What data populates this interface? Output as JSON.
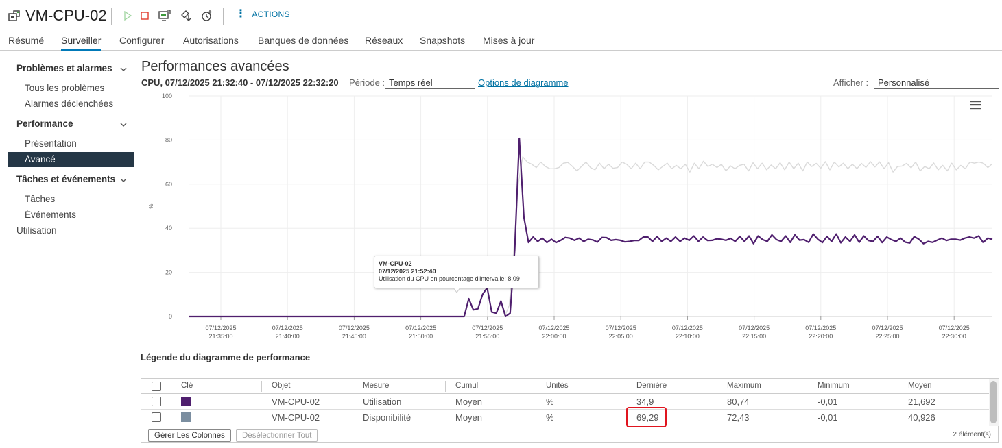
{
  "header": {
    "vm_name": "VM-CPU-02",
    "actions_label": "ACTIONS",
    "icons": [
      "vm-icon",
      "power-on-icon",
      "power-off-icon",
      "console-icon",
      "migrate-icon",
      "snapshot-icon"
    ]
  },
  "tabs": [
    {
      "label": "Résumé",
      "active": false
    },
    {
      "label": "Surveiller",
      "active": true
    },
    {
      "label": "Configurer",
      "active": false
    },
    {
      "label": "Autorisations",
      "active": false
    },
    {
      "label": "Banques de données",
      "active": false
    },
    {
      "label": "Réseaux",
      "active": false
    },
    {
      "label": "Snapshots",
      "active": false
    },
    {
      "label": "Mises à jour",
      "active": false
    }
  ],
  "sidebar": {
    "groups": [
      {
        "label": "Problèmes et alarmes",
        "items": [
          "Tous les problèmes",
          "Alarmes déclenchées"
        ]
      },
      {
        "label": "Performance",
        "items": [
          "Présentation",
          "Avancé"
        ]
      },
      {
        "label": "Tâches et événements",
        "items": [
          "Tâches",
          "Événements"
        ]
      }
    ],
    "active_item": "Avancé",
    "extra": "Utilisation"
  },
  "main": {
    "title": "Performances avancées",
    "subtitle": "CPU, 07/12/2025 21:32:40 - 07/12/2025 22:32:20",
    "period_label": "Période :",
    "period_value": "Temps réel",
    "chart_options_link": "Options de diagramme",
    "show_label": "Afficher :",
    "show_value": "Personnalisé"
  },
  "tooltip": {
    "object": "VM-CPU-02",
    "time": "07/12/2025 21:52:40",
    "text": "Utilisation du CPU en pourcentage d'intervalle: 8,09"
  },
  "chart_data": {
    "type": "line",
    "ylabel": "%",
    "ylim": [
      0,
      100
    ],
    "yticks": [
      "0",
      "20",
      "40",
      "60",
      "80",
      "100"
    ],
    "grid": true,
    "xticks": [
      {
        "date": "07/12/2025",
        "time": "21:35:00"
      },
      {
        "date": "07/12/2025",
        "time": "21:40:00"
      },
      {
        "date": "07/12/2025",
        "time": "21:45:00"
      },
      {
        "date": "07/12/2025",
        "time": "21:50:00"
      },
      {
        "date": "07/12/2025",
        "time": "21:55:00"
      },
      {
        "date": "07/12/2025",
        "time": "22:00:00"
      },
      {
        "date": "07/12/2025",
        "time": "22:05:00"
      },
      {
        "date": "07/12/2025",
        "time": "22:10:00"
      },
      {
        "date": "07/12/2025",
        "time": "22:15:00"
      },
      {
        "date": "07/12/2025",
        "time": "22:20:00"
      },
      {
        "date": "07/12/2025",
        "time": "22:25:00"
      },
      {
        "date": "07/12/2025",
        "time": "22:30:00"
      }
    ],
    "series": [
      {
        "color": "#4f1f6e",
        "values": [
          0,
          0,
          0,
          0,
          0,
          0,
          0,
          0,
          0,
          0,
          0,
          0,
          0,
          0,
          0,
          0,
          0,
          0,
          0,
          0,
          0,
          0,
          0,
          0,
          0,
          0,
          0,
          0,
          0,
          0,
          0,
          0,
          0,
          0,
          0,
          0,
          0,
          0,
          0,
          0,
          0,
          0,
          0,
          0,
          0,
          0,
          0,
          0,
          0,
          0,
          0,
          0,
          0,
          0,
          0,
          0,
          0,
          0,
          0,
          0,
          0,
          8.09,
          3,
          3.5,
          10,
          13,
          2,
          1.5,
          7,
          0,
          1.5,
          30,
          80.74,
          45,
          33.5,
          36,
          34,
          35.5,
          33.5,
          35,
          33.5,
          34.5,
          35.8,
          35.5,
          34.5,
          35.5,
          34,
          35,
          34.7,
          33.7,
          35.8,
          35.7,
          34.5,
          34.8,
          34.5,
          33.8,
          34,
          34.4,
          34.4,
          36,
          36,
          34,
          36.2,
          34,
          35.5,
          34,
          36,
          34,
          35.5,
          34.5,
          36.5,
          34,
          36,
          34.4,
          34.5,
          35.2,
          35,
          34.5,
          35.4,
          34,
          36.3,
          34,
          36.5,
          33,
          36.5,
          34.8,
          34,
          37,
          34.8,
          34,
          36.5,
          33.6,
          37,
          34.6,
          34.8,
          33.6,
          37.4,
          35,
          33.5,
          36.3,
          34,
          37.4,
          33.4,
          36,
          34,
          37,
          33.6,
          36.5,
          34.4,
          34,
          36.3,
          33.5,
          36,
          34.8,
          34,
          35.5,
          33.7,
          33.3,
          36.2,
          35,
          33,
          34,
          33.6,
          34.6,
          35.5,
          34.4,
          35,
          35,
          34.6,
          35.5,
          36,
          35.5,
          36.5,
          33.5,
          35.5,
          34.9
        ]
      },
      {
        "color": "#dadada",
        "values": [
          0,
          0,
          0,
          0,
          0,
          0,
          0,
          0,
          0,
          0,
          0,
          0,
          0,
          0,
          0,
          0,
          0,
          0,
          0,
          0,
          0,
          0,
          0,
          0,
          0,
          0,
          0,
          0,
          0,
          0,
          0,
          0,
          0,
          0,
          0,
          0,
          0,
          0,
          0,
          0,
          0,
          0,
          0,
          0,
          0,
          0,
          0,
          0,
          0,
          0,
          0,
          0,
          0,
          0,
          0,
          0,
          0,
          0,
          0,
          0,
          0,
          0,
          0,
          0,
          0,
          0,
          0,
          0,
          0,
          0,
          0,
          5,
          30,
          60,
          72.43,
          70,
          69,
          67.5,
          70,
          68,
          67,
          67,
          67.5,
          69.5,
          69.8,
          68,
          66,
          68,
          70,
          67.5,
          66.5,
          69.5,
          67,
          69,
          67.2,
          67.5,
          70,
          69,
          67,
          69.5,
          67,
          70,
          70,
          68.5,
          66.5,
          68,
          69.5,
          67,
          68.5,
          67,
          69,
          65.5,
          69.5,
          67,
          70.4,
          68,
          69,
          67.5,
          69,
          66,
          68.3,
          67,
          68.5,
          69,
          66,
          69.7,
          67,
          69.5,
          66.5,
          68.7,
          67,
          69.7,
          66.5,
          70,
          67,
          69.5,
          66,
          70,
          68,
          69.4,
          67.2,
          70.2,
          66.5,
          70,
          67.8,
          69.5,
          67,
          69,
          67,
          69.4,
          67.6,
          70.2,
          67.8,
          70.1,
          67,
          69.7,
          65.5,
          68,
          68.2,
          69.4,
          67.4,
          70,
          66,
          68,
          67,
          69.6,
          66.5,
          68.5,
          66,
          69.5,
          66.5,
          68.5,
          67,
          70,
          69.5,
          70,
          69.5,
          67.5,
          69.29
        ]
      }
    ]
  },
  "legend": {
    "title": "Légende du diagramme de performance",
    "columns": [
      "Clé",
      "Objet",
      "Mesure",
      "Cumul",
      "Unités",
      "Dernière",
      "Maximum",
      "Minimum",
      "Moyen"
    ],
    "rows": [
      {
        "color": "#4f1f6e",
        "object": "VM-CPU-02",
        "measure": "Utilisation",
        "rollup": "Moyen",
        "units": "%",
        "last": "34,9",
        "max": "80,74",
        "min": "-0,01",
        "avg": "21,692"
      },
      {
        "color": "#7b8ea0",
        "object": "VM-CPU-02",
        "measure": "Disponibilité",
        "rollup": "Moyen",
        "units": "%",
        "last": "69,29",
        "max": "72,43",
        "min": "-0,01",
        "avg": "40,926"
      }
    ],
    "manage_columns_label": "Gérer Les Colonnes",
    "deselect_all_label": "Désélectionner Tout",
    "count_label": "2 élément(s)"
  }
}
